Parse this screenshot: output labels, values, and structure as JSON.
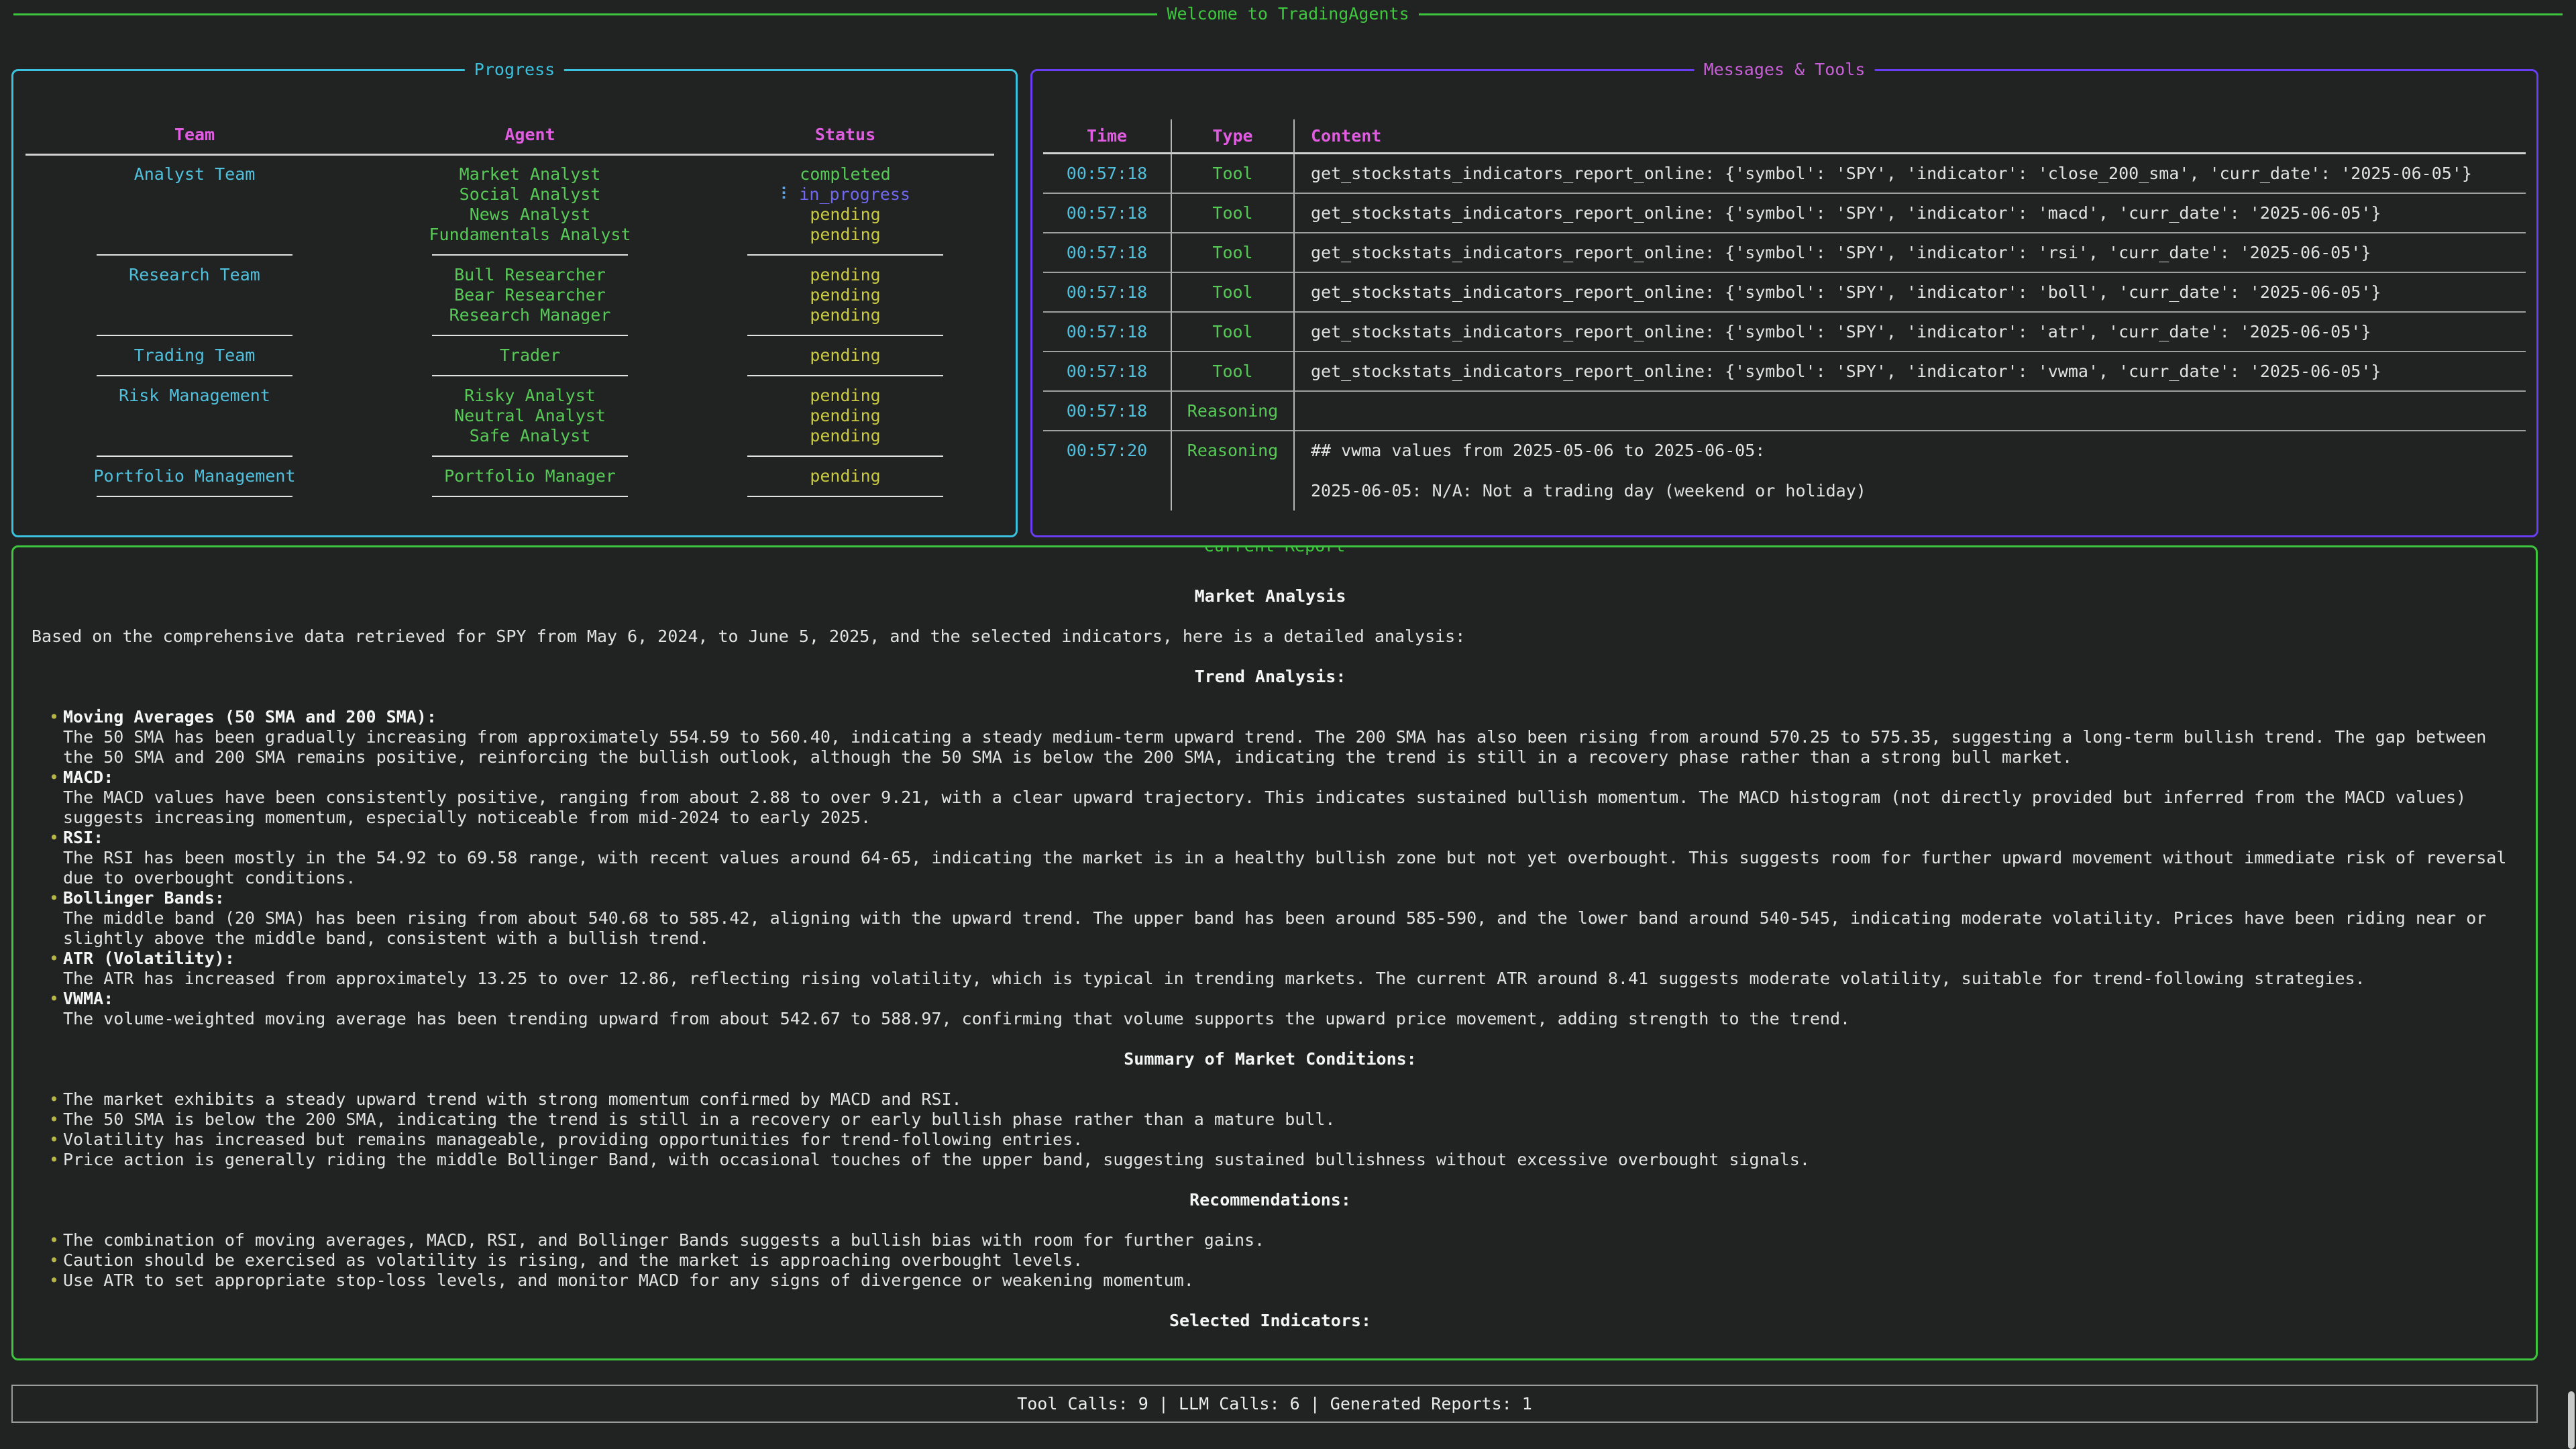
{
  "banner": {
    "title": "Welcome to TradingAgents"
  },
  "colors": {
    "green": "#3ec73e",
    "cyan": "#3ac2de",
    "magenta": "#e05ce0",
    "violet": "#6a3df2",
    "yellow": "#c9c943",
    "blue": "#7168f0",
    "spinner_blue": "#58a6f2",
    "text": "#e2e2e2"
  },
  "progress_panel": {
    "title": "Progress",
    "columns": [
      "Team",
      "Agent",
      "Status"
    ],
    "spinner_glyph": "⠇",
    "groups": [
      {
        "team": "Analyst Team",
        "agents": [
          {
            "name": "Market Analyst",
            "status": "completed"
          },
          {
            "name": "Social Analyst",
            "status": "in_progress"
          },
          {
            "name": "News Analyst",
            "status": "pending"
          },
          {
            "name": "Fundamentals Analyst",
            "status": "pending"
          }
        ]
      },
      {
        "team": "Research Team",
        "agents": [
          {
            "name": "Bull Researcher",
            "status": "pending"
          },
          {
            "name": "Bear Researcher",
            "status": "pending"
          },
          {
            "name": "Research Manager",
            "status": "pending"
          }
        ]
      },
      {
        "team": "Trading Team",
        "agents": [
          {
            "name": "Trader",
            "status": "pending"
          }
        ]
      },
      {
        "team": "Risk Management",
        "agents": [
          {
            "name": "Risky Analyst",
            "status": "pending"
          },
          {
            "name": "Neutral Analyst",
            "status": "pending"
          },
          {
            "name": "Safe Analyst",
            "status": "pending"
          }
        ]
      },
      {
        "team": "Portfolio Management",
        "agents": [
          {
            "name": "Portfolio Manager",
            "status": "pending"
          }
        ]
      }
    ]
  },
  "messages_panel": {
    "title": "Messages & Tools",
    "columns": [
      "Time",
      "Type",
      "Content"
    ],
    "rows": [
      {
        "time": "00:57:18",
        "type": "Tool",
        "content": "get_stockstats_indicators_report_online: {'symbol': 'SPY', 'indicator': 'close_200_sma', 'curr_date': '2025-06-05'}"
      },
      {
        "time": "00:57:18",
        "type": "Tool",
        "content": "get_stockstats_indicators_report_online: {'symbol': 'SPY', 'indicator': 'macd', 'curr_date': '2025-06-05'}"
      },
      {
        "time": "00:57:18",
        "type": "Tool",
        "content": "get_stockstats_indicators_report_online: {'symbol': 'SPY', 'indicator': 'rsi', 'curr_date': '2025-06-05'}"
      },
      {
        "time": "00:57:18",
        "type": "Tool",
        "content": "get_stockstats_indicators_report_online: {'symbol': 'SPY', 'indicator': 'boll', 'curr_date': '2025-06-05'}"
      },
      {
        "time": "00:57:18",
        "type": "Tool",
        "content": "get_stockstats_indicators_report_online: {'symbol': 'SPY', 'indicator': 'atr', 'curr_date': '2025-06-05'}"
      },
      {
        "time": "00:57:18",
        "type": "Tool",
        "content": "get_stockstats_indicators_report_online: {'symbol': 'SPY', 'indicator': 'vwma', 'curr_date': '2025-06-05'}"
      },
      {
        "time": "00:57:18",
        "type": "Reasoning",
        "content": ""
      },
      {
        "time": "00:57:20",
        "type": "Reasoning",
        "content_lines": [
          "## vwma values from 2025-05-06 to 2025-06-05:",
          "",
          "2025-06-05: N/A: Not a trading day (weekend or holiday)"
        ]
      }
    ]
  },
  "report_panel": {
    "title": "Current Report",
    "heading": "Market Analysis",
    "intro": "Based on the comprehensive data retrieved for SPY from May 6, 2024, to June 5, 2025, and the selected indicators, here is a detailed analysis:",
    "sections": [
      {
        "heading": "Trend Analysis:",
        "bullets": [
          {
            "label": "Moving Averages (50 SMA and 200 SMA):",
            "text": "The 50 SMA has been gradually increasing from approximately 554.59 to 560.40, indicating a steady medium-term upward trend. The 200 SMA has also been rising from around 570.25 to 575.35, suggesting a long-term bullish trend. The gap between the 50 SMA and 200 SMA remains positive, reinforcing the bullish outlook, although the 50 SMA is below the 200 SMA, indicating the trend is still in a recovery phase rather than a strong bull market."
          },
          {
            "label": "MACD:",
            "text": "The MACD values have been consistently positive, ranging from about 2.88 to over 9.21, with a clear upward trajectory. This indicates sustained bullish momentum. The MACD histogram (not directly provided but inferred from the MACD values) suggests increasing momentum, especially noticeable from mid-2024 to early 2025."
          },
          {
            "label": "RSI:",
            "text": "The RSI has been mostly in the 54.92 to 69.58 range, with recent values around 64-65, indicating the market is in a healthy bullish zone but not yet overbought. This suggests room for further upward movement without immediate risk of reversal due to overbought conditions."
          },
          {
            "label": "Bollinger Bands:",
            "text": "The middle band (20 SMA) has been rising from about 540.68 to 585.42, aligning with the upward trend. The upper band has been around 585-590, and the lower band around 540-545, indicating moderate volatility. Prices have been riding near or slightly above the middle band, consistent with a bullish trend."
          },
          {
            "label": "ATR (Volatility):",
            "text": "The ATR has increased from approximately 13.25 to over 12.86, reflecting rising volatility, which is typical in trending markets. The current ATR around 8.41 suggests moderate volatility, suitable for trend-following strategies."
          },
          {
            "label": "VWMA:",
            "text": "The volume-weighted moving average has been trending upward from about 542.67 to 588.97, confirming that volume supports the upward price movement, adding strength to the trend."
          }
        ]
      },
      {
        "heading": "Summary of Market Conditions:",
        "bullets": [
          {
            "text": "The market exhibits a steady upward trend with strong momentum confirmed by MACD and RSI."
          },
          {
            "text": "The 50 SMA is below the 200 SMA, indicating the trend is still in a recovery or early bullish phase rather than a mature bull."
          },
          {
            "text": "Volatility has increased but remains manageable, providing opportunities for trend-following entries."
          },
          {
            "text": "Price action is generally riding the middle Bollinger Band, with occasional touches of the upper band, suggesting sustained bullishness without excessive overbought signals."
          }
        ]
      },
      {
        "heading": "Recommendations:",
        "bullets": [
          {
            "text": "The combination of moving averages, MACD, RSI, and Bollinger Bands suggests a bullish bias with room for further gains."
          },
          {
            "text": "Caution should be exercised as volatility is rising, and the market is approaching overbought levels."
          },
          {
            "text": "Use ATR to set appropriate stop-loss levels, and monitor MACD for any signs of divergence or weakening momentum."
          }
        ]
      },
      {
        "heading": "Selected Indicators:",
        "bullets": []
      }
    ]
  },
  "stats_bar": {
    "text": "Tool Calls: 9 | LLM Calls: 6 | Generated Reports: 1"
  }
}
